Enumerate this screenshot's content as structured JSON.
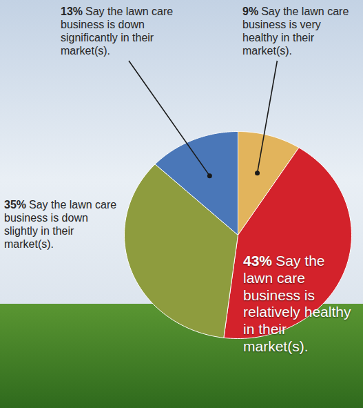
{
  "chart_data": {
    "type": "pie",
    "categories": [
      "Say the lawn care business is very healthy in their market(s).",
      "Say the lawn care business is relatively healthy in their market(s).",
      "Say the lawn care business is down slightly in their market(s).",
      "Say the lawn care business is down significantly in their market(s)."
    ],
    "values": [
      9,
      43,
      35,
      13
    ],
    "value_labels": [
      "9%",
      "43%",
      "35%",
      "13%"
    ],
    "colors": [
      "#e2b45c",
      "#d3222b",
      "#8e9c3e",
      "#4a77b8"
    ],
    "data_labels": true,
    "tick_labels": false
  }
}
